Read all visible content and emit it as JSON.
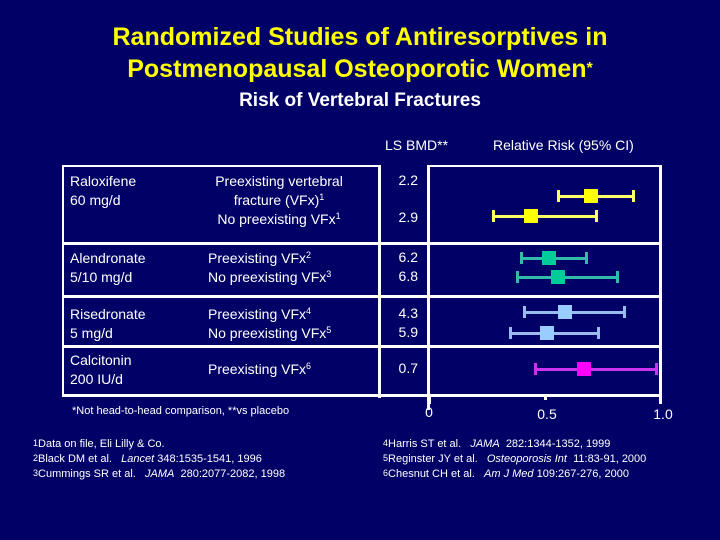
{
  "slide": {
    "title_line1": "Randomized Studies of Antiresorptives in",
    "title_line2": "Postmenopausal Osteoporotic Women",
    "title_mark": "*",
    "subtitle": "Risk of Vertebral Fractures",
    "col_bmd": "LS BMD**",
    "col_rr": "Relative Risk (95% CI)"
  },
  "table": {
    "rows": [
      {
        "drug_line1": "Raloxifene",
        "drug_line2": "60 mg/d",
        "cond1_line1": "Preexisting vertebral",
        "cond1_line2": "fracture (VFx)",
        "cond1_sup": "1",
        "cond2": "No preexisting VFx",
        "cond2_sup": "1",
        "bmd1": "2.2",
        "bmd2": "2.9"
      },
      {
        "drug_line1": "Alendronate",
        "drug_line2": "5/10 mg/d",
        "cond1": "Preexisting VFx",
        "cond1_sup": "2",
        "cond2": "No preexisting VFx",
        "cond2_sup": "3",
        "bmd1": "6.2",
        "bmd2": "6.8"
      },
      {
        "drug_line1": "Risedronate",
        "drug_line2": "5 mg/d",
        "cond1": "Preexisting VFx",
        "cond1_sup": "4",
        "cond2": "No preexisting VFx",
        "cond2_sup": "5",
        "bmd1": "4.3",
        "bmd2": "5.9"
      },
      {
        "drug_line1": "Calcitonin",
        "drug_line2": "200 IU/d",
        "cond1": "Preexisting VFx",
        "cond1_sup": "6",
        "bmd1": "0.7"
      }
    ]
  },
  "axis": {
    "ticks": [
      "0",
      "0.5",
      "1.0"
    ]
  },
  "footnote": "*Not head-to-head comparison, **vs placebo",
  "references_left": [
    {
      "sup": "1",
      "text": "Data on file, Eli Lilly & Co.",
      "journal": "",
      "cite": ""
    },
    {
      "sup": "2",
      "text": "Black DM et al.",
      "journal": "Lancet",
      "cite": "348:1535-1541, 1996"
    },
    {
      "sup": "3",
      "text": "Cummings SR et al.",
      "journal": "JAMA",
      "cite": "280:2077-2082, 1998"
    }
  ],
  "references_right": [
    {
      "sup": "4",
      "text": "Harris ST et al.",
      "journal": "JAMA",
      "cite": "282:1344-1352, 1999"
    },
    {
      "sup": "5",
      "text": "Reginster JY et al.",
      "journal": "Osteoporosis Int",
      "cite": "11:83-91, 2000"
    },
    {
      "sup": "6",
      "text": "Chesnut CH et al.",
      "journal": "Am J Med",
      "cite": "109:267-276, 2000"
    }
  ],
  "colors": {
    "background": "#000066",
    "title": "#ffff00",
    "raloxifene": "#ffff00",
    "raloxifene_whisker": "#ffff66",
    "alendronate": "#00cc99",
    "alendronate_whisker": "#33bbaa",
    "risedronate": "#99ccff",
    "risedronate_whisker": "#99bbee",
    "calcitonin": "#ff00ff",
    "calcitonin_whisker": "#cc33ee"
  },
  "chart_data": {
    "type": "forest",
    "title": "Randomized Studies of Antiresorptives in Postmenopausal Osteoporotic Women* — Risk of Vertebral Fractures",
    "xlabel": "Relative Risk (95% CI)",
    "xlim": [
      0,
      1.0
    ],
    "xticks": [
      0,
      0.5,
      1.0
    ],
    "series": [
      {
        "drug": "Raloxifene 60 mg/d",
        "group": "Preexisting vertebral fracture (VFx)",
        "ls_bmd": 2.2,
        "rr": 0.7,
        "ci": [
          0.56,
          0.88
        ],
        "color": "#ffff00"
      },
      {
        "drug": "Raloxifene 60 mg/d",
        "group": "No preexisting VFx",
        "ls_bmd": 2.9,
        "rr": 0.44,
        "ci": [
          0.28,
          0.72
        ],
        "color": "#ffff00"
      },
      {
        "drug": "Alendronate 5/10 mg/d",
        "group": "Preexisting VFx",
        "ls_bmd": 6.2,
        "rr": 0.52,
        "ci": [
          0.4,
          0.68
        ],
        "color": "#00cc99"
      },
      {
        "drug": "Alendronate 5/10 mg/d",
        "group": "No preexisting VFx",
        "ls_bmd": 6.8,
        "rr": 0.56,
        "ci": [
          0.38,
          0.81
        ],
        "color": "#00cc99"
      },
      {
        "drug": "Risedronate 5 mg/d",
        "group": "Preexisting VFx",
        "ls_bmd": 4.3,
        "rr": 0.59,
        "ci": [
          0.41,
          0.84
        ],
        "color": "#99ccff"
      },
      {
        "drug": "Risedronate 5 mg/d",
        "group": "No preexisting VFx",
        "ls_bmd": 5.9,
        "rr": 0.51,
        "ci": [
          0.35,
          0.73
        ],
        "color": "#99ccff"
      },
      {
        "drug": "Calcitonin 200 IU/d",
        "group": "Preexisting VFx",
        "ls_bmd": 0.7,
        "rr": 0.67,
        "ci": [
          0.46,
          0.98
        ],
        "color": "#ff00ff"
      }
    ],
    "legend": "none",
    "grid": false
  }
}
